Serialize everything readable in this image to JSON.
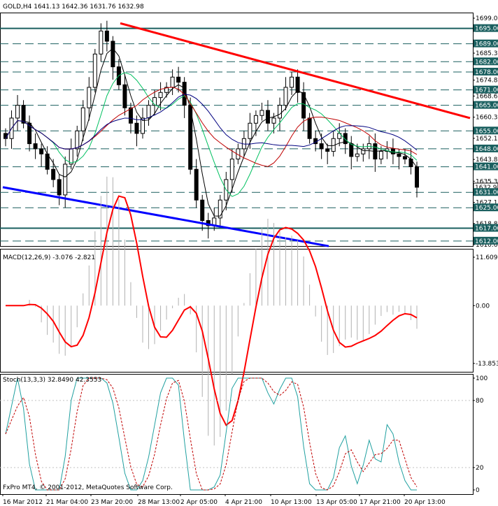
{
  "main_panel": {
    "symbol_header": "GOLD,H4  1641.13 1642.36 1631.76 1632.98",
    "y_axis_ticks": [
      "1699.00",
      "1685.35",
      "1674.80",
      "1668.60",
      "1660.35",
      "1652.10",
      "1643.85",
      "1635.35",
      "1627.10",
      "1618.85",
      "1610.60"
    ],
    "highlighted_levels": [
      "1695.00",
      "1689.00",
      "1682.00",
      "1678.00",
      "1671.00",
      "1665.00",
      "1655.00",
      "1648.00",
      "1641.00",
      "1632.98",
      "1631.00",
      "1625.00",
      "1617.00",
      "1612.00"
    ],
    "current_price_label": "1632.98"
  },
  "macd_panel": {
    "header": "MACD(12,26,9) -3.076 -2.821",
    "y_axis_ticks": [
      "11.609",
      "0.00",
      "-13.853"
    ]
  },
  "stoch_panel": {
    "header": "Stoch(13,3,3) 32.8490 42.3553",
    "y_axis_ticks": [
      "100",
      "80",
      "20",
      "0"
    ]
  },
  "copyright": "FxPro MT4, © 2001-2012, MetaQuotes Software Corp.",
  "x_axis_labels": [
    "16 Mar 2012",
    "21 Mar 04:00",
    "23 Mar 20:00",
    "28 Mar 13:00",
    "2 Apr 05:00",
    "4 Apr 21:00",
    "10 Apr 13:00",
    "13 Apr 05:00",
    "17 Apr 21:00",
    "20 Apr 13:00"
  ],
  "colors": {
    "background": "#ffffff",
    "candles": "#000000",
    "horizontal_levels": "#1a5f5f",
    "resistance_trendline": "#ff0000",
    "support_trendline": "#0000ff",
    "ma_fast": "#000000",
    "ma_medium": "#00c060",
    "ma_slow": "#c00000",
    "ma_slowest": "#000080",
    "macd_signal": "#ff0000",
    "macd_histogram": "#b0b0b0",
    "stoch_main": "#20a0a0",
    "stoch_signal": "#c00000"
  },
  "chart_data": {
    "type": "candlestick",
    "symbol": "GOLD",
    "timeframe": "H4",
    "ohlc_last": {
      "open": 1641.13,
      "high": 1642.36,
      "low": 1631.76,
      "close": 1632.98
    },
    "y_range": [
      1610.6,
      1699.0
    ],
    "levels": [
      1695,
      1689,
      1682,
      1678,
      1671,
      1665,
      1655,
      1648,
      1641,
      1631,
      1625,
      1617,
      1612
    ],
    "trendlines": [
      {
        "color": "red",
        "from": {
          "x": "23 Mar 20:00",
          "y": 1697
        },
        "to": {
          "x": "20 Apr 13:00",
          "y": 1660
        }
      },
      {
        "color": "blue",
        "from": {
          "x": "16 Mar 2012",
          "y": 1633
        },
        "to": {
          "x": "13 Apr 05:00",
          "y": 1610
        }
      }
    ],
    "close_series": [
      1652,
      1660,
      1665,
      1658,
      1650,
      1648,
      1646,
      1640,
      1636,
      1630,
      1642,
      1648,
      1655,
      1664,
      1672,
      1685,
      1694,
      1690,
      1680,
      1673,
      1664,
      1658,
      1654,
      1660,
      1665,
      1668,
      1670,
      1672,
      1676,
      1674,
      1665,
      1640,
      1628,
      1620,
      1618,
      1621,
      1628,
      1636,
      1644,
      1648,
      1652,
      1658,
      1661,
      1663,
      1658,
      1660,
      1665,
      1672,
      1676,
      1670,
      1660,
      1652,
      1650,
      1648,
      1647,
      1652,
      1654,
      1650,
      1645,
      1646,
      1648,
      1650,
      1644,
      1647,
      1648,
      1646,
      1645,
      1644,
      1641,
      1633
    ],
    "macd": {
      "y_range": [
        -13.853,
        11.609
      ],
      "current": -3.076,
      "signal": -2.821
    },
    "stochastic": {
      "y_range": [
        0,
        100
      ],
      "main": 32.849,
      "signal": 42.3553,
      "levels": [
        80,
        20
      ]
    }
  }
}
